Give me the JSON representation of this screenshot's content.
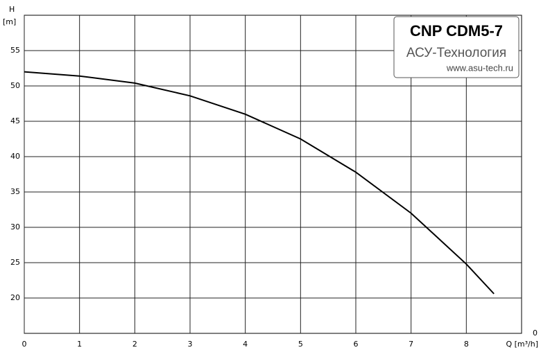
{
  "chart_data": {
    "type": "line",
    "box_title": "CNP CDM5-7",
    "box_subtitle": "АСУ-Технология",
    "box_url": "www.asu-tech.ru",
    "y_label_top": "H",
    "y_label_unit": "[m]",
    "x_label": "Q [m³/h]",
    "right_label": "0",
    "x": [
      0,
      1,
      2,
      3,
      4,
      5,
      6,
      7,
      8,
      8.5
    ],
    "series": [
      {
        "color": "#000000",
        "values": [
          52,
          51.4,
          50.4,
          48.6,
          46,
          42.5,
          37.8,
          32,
          24.8,
          20.6
        ]
      }
    ],
    "xlim": [
      0,
      9
    ],
    "xticks": [
      0,
      1,
      2,
      3,
      4,
      5,
      6,
      7,
      8
    ],
    "ylim": [
      15,
      60
    ],
    "yticks": [
      20,
      25,
      30,
      35,
      40,
      45,
      50,
      55
    ],
    "grid": true
  }
}
